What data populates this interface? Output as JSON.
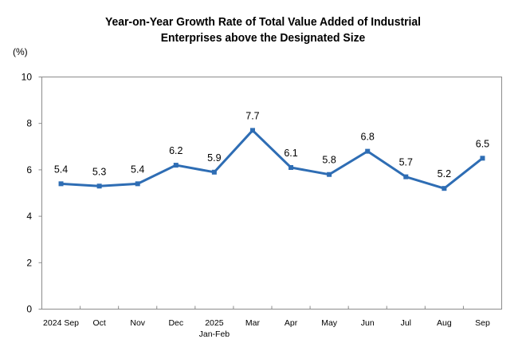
{
  "chart_data": {
    "type": "line",
    "title_line1": "Year-on-Year Growth Rate of Total Value Added of Industrial",
    "title_line2": "Enterprises above the Designated Size",
    "ylabel": "(%)",
    "xlabel": "",
    "ylim": [
      0,
      10
    ],
    "yticks": [
      0,
      2,
      4,
      6,
      8,
      10
    ],
    "grid": false,
    "categories": [
      [
        "2024 Sep"
      ],
      [
        "Oct"
      ],
      [
        "Nov"
      ],
      [
        "Dec"
      ],
      [
        "2025",
        "Jan-Feb"
      ],
      [
        "Mar"
      ],
      [
        "Apr"
      ],
      [
        "May"
      ],
      [
        "Jun"
      ],
      [
        "Jul"
      ],
      [
        "Aug"
      ],
      [
        "Sep"
      ]
    ],
    "series": [
      {
        "name": "Year-on-Year Growth Rate",
        "color": "#2E6DB4",
        "values": [
          5.4,
          5.3,
          5.4,
          6.2,
          5.9,
          7.7,
          6.1,
          5.8,
          6.8,
          5.7,
          5.2,
          6.5
        ],
        "labels": [
          "5.4",
          "5.3",
          "5.4",
          "6.2",
          "5.9",
          "7.7",
          "6.1",
          "5.8",
          "6.8",
          "5.7",
          "5.2",
          "6.5"
        ]
      }
    ]
  }
}
